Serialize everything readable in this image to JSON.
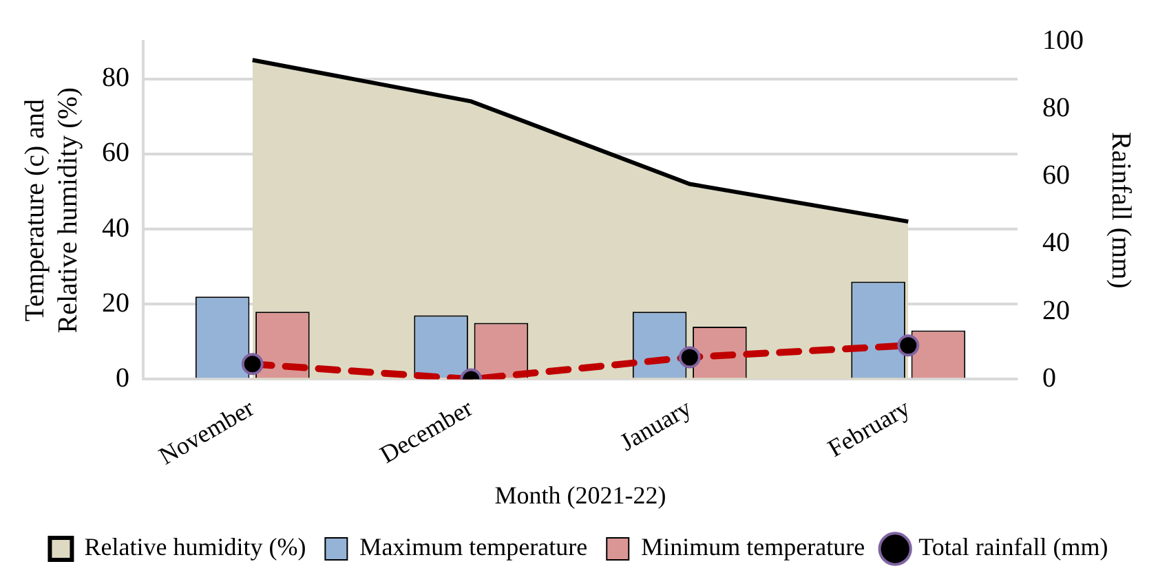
{
  "chart_data": {
    "type": "bar",
    "categories": [
      "November",
      "December",
      "January",
      "February"
    ],
    "xlabel": "Month (2021-22)",
    "ylabel": "Temperature (c) and\nRelative humidity (%)",
    "y2label": "Rainfall (mm)",
    "ylim": [
      0,
      90
    ],
    "yticks": [
      0,
      20,
      40,
      60,
      80
    ],
    "y2lim": [
      0,
      100
    ],
    "y2ticks": [
      0,
      20,
      40,
      60,
      80,
      100
    ],
    "grid": "y",
    "legend": "bottom",
    "series": [
      {
        "name": "Relative humidity (%)",
        "type": "area",
        "color": "#ddd9c3",
        "values": [
          85,
          74,
          52,
          42
        ]
      },
      {
        "name": "Maximum temperature",
        "color": "#95b3d7",
        "values": [
          22,
          17,
          18,
          26
        ]
      },
      {
        "name": "Minimum temperature",
        "color": "#da9694",
        "values": [
          18,
          15,
          14,
          13
        ]
      },
      {
        "name": "Total rainfall (mm)",
        "type": "line",
        "axis": "y2",
        "color": "#c00000",
        "marker": "circle",
        "line_style": "dashed",
        "values": [
          4.5,
          0,
          6.5,
          10
        ]
      }
    ]
  }
}
